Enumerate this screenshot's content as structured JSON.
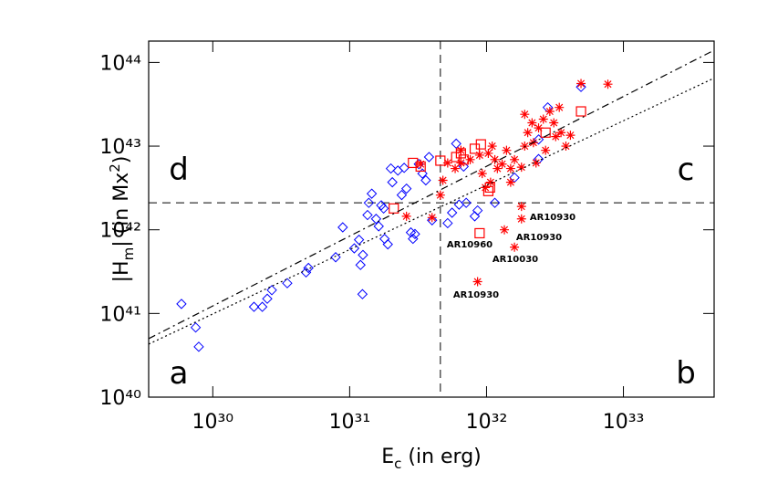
{
  "chart_data": {
    "type": "scatter",
    "xlabel": [
      "E",
      "c",
      " (in erg)"
    ],
    "ylabel": [
      "|H",
      "m",
      "| (in Mx",
      "2",
      ")"
    ],
    "xscale": "log",
    "yscale": "log",
    "xlim": [
      3.4e+29,
      4.6e+33
    ],
    "ylim": [
      1e+40,
      1.8e+44
    ],
    "xticks": [
      {
        "value": 1e+30,
        "label": "10³⁰"
      },
      {
        "value": 1e+31,
        "label": "10³¹"
      },
      {
        "value": 1e+32,
        "label": "10³²"
      },
      {
        "value": 1e+33,
        "label": "10³³"
      }
    ],
    "yticks": [
      {
        "value": 1e+40,
        "label": "10⁴⁰"
      },
      {
        "value": 1e+41,
        "label": "10⁴¹"
      },
      {
        "value": 1e+42,
        "label": "10⁴²"
      },
      {
        "value": 1e+43,
        "label": "10⁴³"
      },
      {
        "value": 1e+44,
        "label": "10⁴⁴"
      }
    ],
    "thresholds": {
      "x": 4.6e+31,
      "y": 2.1e+42
    },
    "quadrant_labels": [
      "a",
      "b",
      "c",
      "d"
    ],
    "annotations": [
      "AR10930",
      "AR10930",
      "AR10960",
      "AR10030",
      "AR10930"
    ],
    "series": [
      {
        "type": "scatter",
        "marker": "diamond",
        "color": "#0000ff",
        "x": [
          5.9e+29,
          7.5e+29,
          7.9e+29,
          2e+30,
          2.3e+30,
          2.5e+30,
          2.7e+30,
          3.5e+30,
          4.8e+30,
          5e+30,
          7.9e+30,
          8.9e+30,
          1.08e+31,
          1.17e+31,
          1.2e+31,
          1.24e+31,
          1.25e+31,
          1.35e+31,
          1.38e+31,
          1.45e+31,
          1.56e+31,
          1.63e+31,
          1.7e+31,
          1.77e+31,
          1.8e+31,
          1.9e+31,
          2e+31,
          2.05e+31,
          2.25e+31,
          2.4e+31,
          2.5e+31,
          2.6e+31,
          2.8e+31,
          2.9e+31,
          3e+31,
          3.2e+31,
          3.4e+31,
          3.6e+31,
          3.8e+31,
          4e+31,
          5.2e+31,
          5.6e+31,
          6e+31,
          6.3e+31,
          6.8e+31,
          7.1e+31,
          8.2e+31,
          8.6e+31,
          1.15e+32,
          1.6e+32,
          2.4e+32,
          2.8e+32,
          4.9e+32,
          2.4e+32
        ],
        "values": [
          1.3e+41,
          6.8e+40,
          4e+40,
          1.2e+41,
          1.2e+41,
          1.5e+41,
          1.9e+41,
          2.3e+41,
          3.1e+41,
          3.5e+41,
          4.7e+41,
          1.07e+42,
          6e+41,
          7.6e+41,
          3.8e+41,
          1.7e+41,
          5e+41,
          1.5e+42,
          2.1e+42,
          2.7e+42,
          1.35e+42,
          1.1e+42,
          1.96e+42,
          1.8e+42,
          7.8e+41,
          6.7e+41,
          5.4e+42,
          3.7e+42,
          5.1e+42,
          2.6e+42,
          5.5e+42,
          3.1e+42,
          9.3e+41,
          7.8e+41,
          8.9e+41,
          6.1e+42,
          4.7e+42,
          3.9e+42,
          7.4e+42,
          1.3e+42,
          1.2e+42,
          1.6e+42,
          1.07e+43,
          2e+42,
          5.7e+42,
          2.1e+42,
          1.45e+42,
          1.7e+42,
          2.1e+42,
          4.2e+42,
          7e+42,
          2.9e+43,
          5.1e+43,
          1.2e+43
        ]
      },
      {
        "type": "scatter",
        "marker": "asterisk",
        "color": "#ff0000",
        "x": [
          7.7e+32,
          4.9e+32,
          3.4e+32,
          4.6e+31,
          4e+31,
          4.8e+31,
          5.9e+31,
          6.5e+31,
          7.6e+31,
          8.9e+31,
          1.03e+32,
          9.3e+31,
          9.8e+31,
          1.07e+32,
          1.2e+32,
          1.15e+32,
          1.3e+32,
          1.4e+32,
          1.5e+32,
          1.6e+32,
          1.8e+32,
          1.9e+32,
          2e+32,
          2.15e+32,
          2.2e+32,
          2.4e+32,
          2.6e+32,
          2.9e+32,
          3.1e+32,
          3.2e+32,
          3.5e+32,
          3.8e+32,
          4.1e+32,
          2.7e+32,
          2.3e+32,
          1.5e+32,
          1.8e+32,
          1.8e+32,
          1.35e+32,
          1.6e+32,
          8.6e+31,
          6.5e+31,
          5.2e+31,
          3.3e+31,
          2.6e+31,
          1.1e+32,
          1.9e+32
        ],
        "values": [
          5.5e+43,
          5.6e+43,
          2.9e+43,
          2.6e+42,
          1.4e+42,
          3.9e+42,
          5.4e+42,
          6.3e+42,
          6.9e+42,
          7.8e+42,
          8.2e+42,
          4.7e+42,
          3.2e+42,
          3.7e+42,
          5.4e+42,
          6.9e+42,
          6.1e+42,
          8.9e+42,
          5.4e+42,
          6.9e+42,
          5.6e+42,
          1e+43,
          1.45e+43,
          1.9e+43,
          1.1e+43,
          1.65e+43,
          2.1e+43,
          2.6e+43,
          1.9e+43,
          1.3e+43,
          1.45e+43,
          1e+43,
          1.35e+43,
          8.9e+42,
          6.3e+42,
          3.7e+42,
          1.9e+42,
          1.35e+42,
          1e+42,
          6.2e+41,
          2.4e+41,
          8.9e+42,
          6.3e+42,
          6.1e+42,
          1.45e+42,
          1e+43,
          2.4e+43
        ]
      },
      {
        "type": "scatter",
        "marker": "square",
        "color": "#ff0000",
        "x": [
          2.1e+31,
          3.3e+31,
          2.9e+31,
          4.6e+31,
          6e+31,
          6.5e+31,
          8.2e+31,
          9.1e+31,
          1.06e+32,
          1.03e+32,
          8.9e+31,
          4.9e+32,
          2.7e+32,
          6.8e+31
        ],
        "values": [
          1.8e+42,
          5.7e+42,
          6.3e+42,
          6.7e+42,
          7.4e+42,
          8.2e+42,
          9.3e+42,
          1.05e+43,
          3.2e+42,
          2.9e+42,
          9.1e+41,
          2.6e+43,
          1.45e+43,
          6.9e+42
        ]
      },
      {
        "type": "line",
        "style": "dashdot",
        "color": "#000000",
        "x": [
          3.4e+29,
          4.6e+33
        ],
        "values": [
          5e+40,
          1.4e+44
        ]
      },
      {
        "type": "line",
        "style": "dotted",
        "color": "#000000",
        "x": [
          3.4e+29,
          4.6e+33
        ],
        "values": [
          4.3e+40,
          6.5e+43
        ]
      }
    ]
  }
}
